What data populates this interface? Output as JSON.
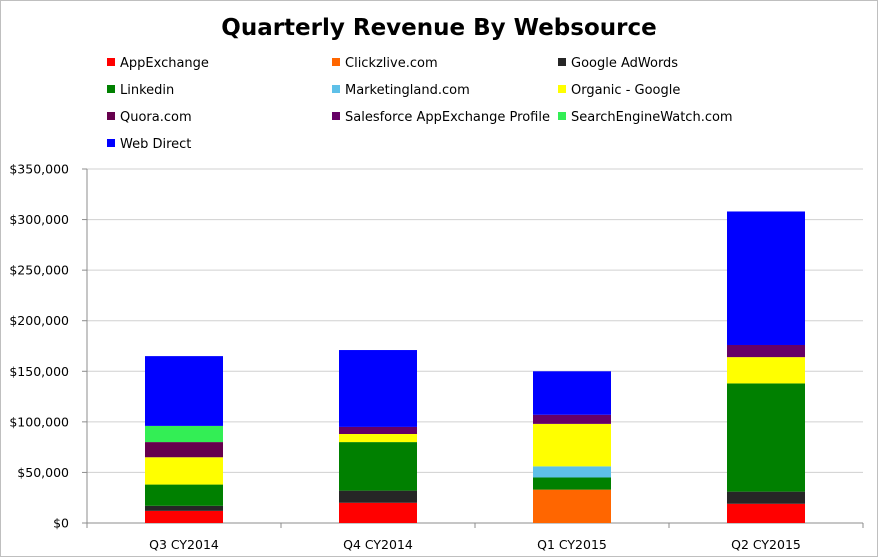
{
  "chart_data": {
    "type": "bar",
    "stacked": true,
    "title": "Quarterly Revenue By Websource",
    "xlabel": "",
    "ylabel": "",
    "categories": [
      "Q3 CY2014",
      "Q4 CY2014",
      "Q1 CY2015",
      "Q2 CY2015"
    ],
    "ylim": [
      0,
      350000
    ],
    "yticks": [
      0,
      50000,
      100000,
      150000,
      200000,
      250000,
      300000,
      350000
    ],
    "ytick_labels": [
      "$0",
      "$50,000",
      "$100,000",
      "$150,000",
      "$200,000",
      "$250,000",
      "$300,000",
      "$350,000"
    ],
    "grid": true,
    "legend_position": "top",
    "series": [
      {
        "name": "AppExchange",
        "color": "#ff0000",
        "values": [
          12000,
          20000,
          0,
          19000
        ]
      },
      {
        "name": "Clickzlive.com",
        "color": "#ff6600",
        "values": [
          0,
          0,
          33000,
          0
        ]
      },
      {
        "name": "Google AdWords",
        "color": "#262626",
        "values": [
          5000,
          12000,
          0,
          12000
        ]
      },
      {
        "name": "Linkedin",
        "color": "#008000",
        "values": [
          21000,
          48000,
          12000,
          107000
        ]
      },
      {
        "name": "Marketingland.com",
        "color": "#5ec0e8",
        "values": [
          0,
          0,
          11000,
          0
        ]
      },
      {
        "name": "Organic - Google",
        "color": "#ffff00",
        "values": [
          27000,
          8000,
          42000,
          26000
        ]
      },
      {
        "name": "Quora.com",
        "color": "#66004d",
        "values": [
          15000,
          0,
          0,
          0
        ]
      },
      {
        "name": "Salesforce AppExchange Profile",
        "color": "#660066",
        "values": [
          0,
          7000,
          9000,
          12000
        ]
      },
      {
        "name": "SearchEngineWatch.com",
        "color": "#33ee55",
        "values": [
          16000,
          0,
          0,
          0
        ]
      },
      {
        "name": "Web Direct",
        "color": "#0000ff",
        "values": [
          69000,
          76000,
          43000,
          132000
        ]
      }
    ]
  }
}
